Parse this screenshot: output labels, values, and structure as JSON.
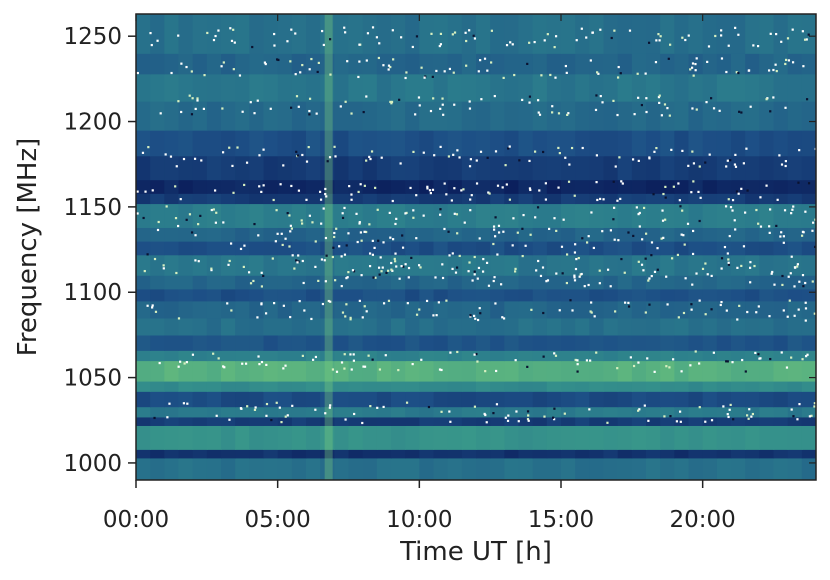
{
  "chart_data": {
    "type": "heatmap",
    "title": "",
    "xlabel": "Time UT [h]",
    "ylabel": "Frequency [MHz]",
    "xlim": [
      0,
      24
    ],
    "ylim": [
      990,
      1263
    ],
    "x_ticks": [
      {
        "value": 0,
        "label": "00:00"
      },
      {
        "value": 5,
        "label": "05:00"
      },
      {
        "value": 10,
        "label": "10:00"
      },
      {
        "value": 15,
        "label": "15:00"
      },
      {
        "value": 20,
        "label": "20:00"
      }
    ],
    "y_ticks": [
      {
        "value": 1000,
        "label": "1000"
      },
      {
        "value": 1050,
        "label": "1050"
      },
      {
        "value": 1100,
        "label": "1100"
      },
      {
        "value": 1150,
        "label": "1150"
      },
      {
        "value": 1200,
        "label": "1200"
      },
      {
        "value": 1250,
        "label": "1250"
      }
    ],
    "grid": false,
    "colormap": [
      "#0b1f5c",
      "#1d4f86",
      "#2a7a8c",
      "#3a9a8a",
      "#6cc07a",
      "#b6e07a"
    ],
    "frequency_bands": [
      {
        "f0": 990,
        "f1": 1003,
        "level": 0.35
      },
      {
        "f0": 1003,
        "f1": 1008,
        "level": 0.08
      },
      {
        "f0": 1008,
        "f1": 1022,
        "level": 0.55
      },
      {
        "f0": 1022,
        "f1": 1027,
        "level": 0.12
      },
      {
        "f0": 1027,
        "f1": 1033,
        "level": 0.4
      },
      {
        "f0": 1033,
        "f1": 1042,
        "level": 0.18
      },
      {
        "f0": 1042,
        "f1": 1048,
        "level": 0.5
      },
      {
        "f0": 1048,
        "f1": 1060,
        "level": 0.72
      },
      {
        "f0": 1060,
        "f1": 1066,
        "level": 0.45
      },
      {
        "f0": 1066,
        "f1": 1075,
        "level": 0.22
      },
      {
        "f0": 1075,
        "f1": 1085,
        "level": 0.35
      },
      {
        "f0": 1085,
        "f1": 1095,
        "level": 0.3
      },
      {
        "f0": 1095,
        "f1": 1102,
        "level": 0.2
      },
      {
        "f0": 1102,
        "f1": 1110,
        "level": 0.3
      },
      {
        "f0": 1110,
        "f1": 1122,
        "level": 0.38
      },
      {
        "f0": 1122,
        "f1": 1130,
        "level": 0.2
      },
      {
        "f0": 1130,
        "f1": 1138,
        "level": 0.3
      },
      {
        "f0": 1138,
        "f1": 1152,
        "level": 0.42
      },
      {
        "f0": 1152,
        "f1": 1158,
        "level": 0.12
      },
      {
        "f0": 1158,
        "f1": 1166,
        "level": 0.03
      },
      {
        "f0": 1166,
        "f1": 1180,
        "level": 0.12
      },
      {
        "f0": 1180,
        "f1": 1195,
        "level": 0.2
      },
      {
        "f0": 1195,
        "f1": 1212,
        "level": 0.32
      },
      {
        "f0": 1212,
        "f1": 1228,
        "level": 0.38
      },
      {
        "f0": 1228,
        "f1": 1240,
        "level": 0.3
      },
      {
        "f0": 1240,
        "f1": 1263,
        "level": 0.35
      }
    ],
    "rfi_rows": [
      1030,
      1060,
      1090,
      1110,
      1118,
      1132,
      1145,
      1160,
      1180,
      1210,
      1232,
      1250
    ],
    "rfi_time_range": [
      6,
      24
    ],
    "bright_time_stripe": 6.8,
    "series": []
  }
}
